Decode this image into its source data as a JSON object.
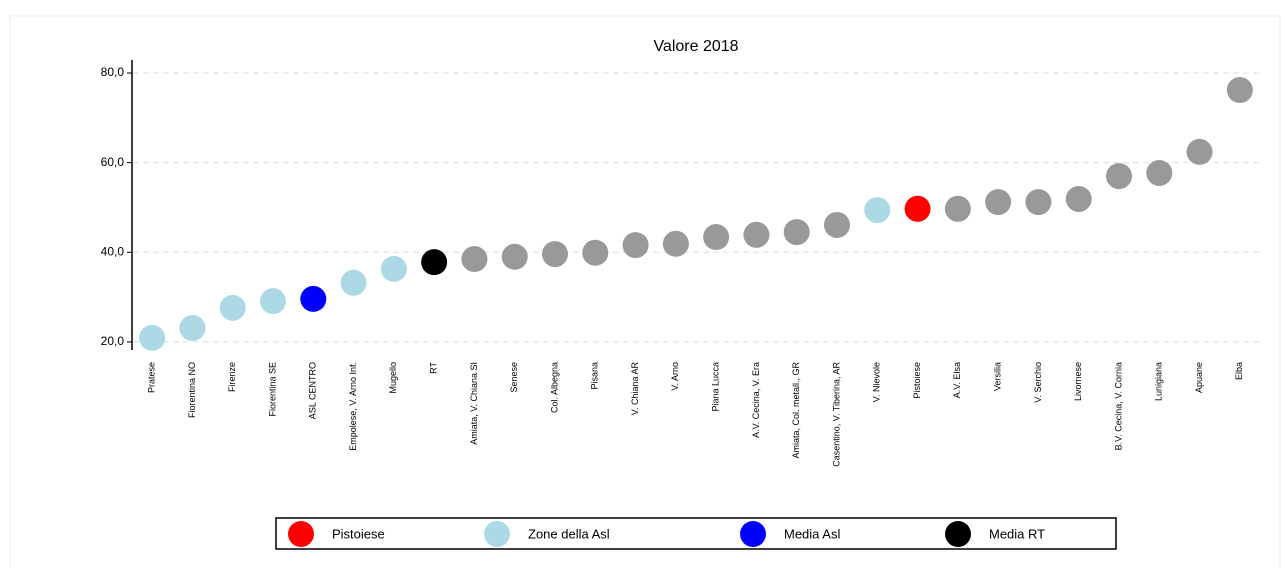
{
  "chart_data": {
    "type": "dot",
    "title": "Valore 2018",
    "categories": [
      "Pratese",
      "Fiorentina NO",
      "Firenze",
      "Fiorentina SE",
      "ASL CENTRO",
      "Empolese, V. Arno Inf.",
      "Mugello",
      "RT",
      "Amiata, V. Chiana SI",
      "Senese",
      "Col. Albegna",
      "Pisana",
      "V. Chiana AR",
      "V. Arno",
      "Piana Lucca",
      "A.V. Cecina, V. Era",
      "Amiata, Col. metall., GR",
      "Casentino, V. Tiberina, AR",
      "V. Nievole",
      "Pistoiese",
      "A.V. Elsa",
      "Versilia",
      "V. Serchio",
      "Livornese",
      "B.V. Cecina, V. Cornia",
      "Lunigiana",
      "Apuane",
      "Elba"
    ],
    "values": [
      20.9,
      23.1,
      27.6,
      29.1,
      29.6,
      33.2,
      36.3,
      37.8,
      38.5,
      39.0,
      39.6,
      39.9,
      41.6,
      41.9,
      43.4,
      43.9,
      44.5,
      46.1,
      49.4,
      49.7,
      49.7,
      51.2,
      51.2,
      51.9,
      57.0,
      57.7,
      62.4,
      76.2
    ],
    "colors": [
      "#add8e6",
      "#add8e6",
      "#add8e6",
      "#add8e6",
      "#0000ff",
      "#add8e6",
      "#add8e6",
      "#000000",
      "#999999",
      "#999999",
      "#999999",
      "#999999",
      "#999999",
      "#999999",
      "#999999",
      "#999999",
      "#999999",
      "#999999",
      "#add8e6",
      "#ff0000",
      "#999999",
      "#999999",
      "#999999",
      "#999999",
      "#999999",
      "#999999",
      "#999999",
      "#999999"
    ],
    "ylim": [
      18.2,
      82.9
    ],
    "yticks": [
      {
        "value": 20,
        "label": "20,0"
      },
      {
        "value": 40,
        "label": "40,0"
      },
      {
        "value": 60,
        "label": "60,0"
      },
      {
        "value": 80,
        "label": "80,0"
      }
    ],
    "grid": true,
    "legend": [
      {
        "label": "Pistoiese",
        "color": "#ff0000"
      },
      {
        "label": "Zone della Asl",
        "color": "#add8e6"
      },
      {
        "label": "Media Asl",
        "color": "#0000ff"
      },
      {
        "label": "Media RT",
        "color": "#000000"
      }
    ]
  }
}
